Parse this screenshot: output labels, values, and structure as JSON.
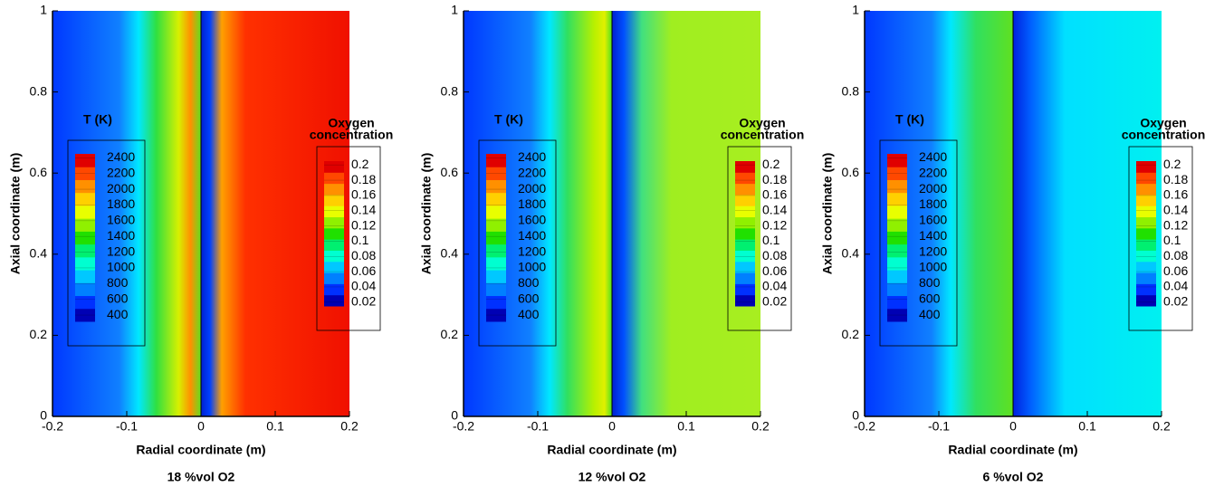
{
  "colormap": [
    "#0000b4",
    "#0030ff",
    "#0080ff",
    "#00c8ff",
    "#00ffd0",
    "#00f070",
    "#20e000",
    "#90f000",
    "#e8ff00",
    "#ffd000",
    "#ff9000",
    "#ff4800",
    "#e00000"
  ],
  "chart_data": [
    {
      "type": "contour",
      "caption": "18 %vol O2",
      "xlabel": "Radial coordinate (m)",
      "ylabel": "Axial coordinate (m)",
      "xlim": [
        -0.2,
        0.2
      ],
      "xticks": [
        -0.2,
        -0.1,
        0,
        0.1,
        0.2
      ],
      "ylim": [
        0,
        1
      ],
      "yticks": [
        0,
        0.2,
        0.4,
        0.6,
        0.8,
        1
      ],
      "colorbars": [
        {
          "title_lines": [
            "T (K)"
          ],
          "lim": [
            320,
            2450
          ],
          "ticks": [
            400,
            600,
            800,
            1000,
            1200,
            1400,
            1600,
            1800,
            2000,
            2200,
            2400
          ]
        },
        {
          "title_lines": [
            "Oxygen",
            "concentration"
          ],
          "lim": [
            0.015,
            0.205
          ],
          "ticks": [
            0.02,
            0.04,
            0.06,
            0.08,
            0.1,
            0.12,
            0.14,
            0.16,
            0.18,
            0.2
          ]
        }
      ]
    },
    {
      "type": "contour",
      "caption": "12 %vol O2",
      "xlabel": "Radial coordinate (m)",
      "ylabel": "Axial coordinate (m)",
      "xlim": [
        -0.2,
        0.2
      ],
      "xticks": [
        -0.2,
        -0.1,
        0,
        0.1,
        0.2
      ],
      "ylim": [
        0,
        1
      ],
      "yticks": [
        0,
        0.2,
        0.4,
        0.6,
        0.8,
        1
      ],
      "colorbars": [
        {
          "title_lines": [
            "T (K)"
          ],
          "lim": [
            320,
            2450
          ],
          "ticks": [
            400,
            600,
            800,
            1000,
            1200,
            1400,
            1600,
            1800,
            2000,
            2200,
            2400
          ]
        },
        {
          "title_lines": [
            "Oxygen",
            "concentration"
          ],
          "lim": [
            0.015,
            0.205
          ],
          "ticks": [
            0.02,
            0.04,
            0.06,
            0.08,
            0.1,
            0.12,
            0.14,
            0.16,
            0.18,
            0.2
          ]
        }
      ]
    },
    {
      "type": "contour",
      "caption": "6 %vol O2",
      "xlabel": "Radial coordinate (m)",
      "ylabel": "Axial coordinate (m)",
      "xlim": [
        -0.2,
        0.2
      ],
      "xticks": [
        -0.2,
        -0.1,
        0,
        0.1,
        0.2
      ],
      "ylim": [
        0,
        1
      ],
      "yticks": [
        0,
        0.2,
        0.4,
        0.6,
        0.8,
        1
      ],
      "colorbars": [
        {
          "title_lines": [
            "T (K)"
          ],
          "lim": [
            320,
            2450
          ],
          "ticks": [
            400,
            600,
            800,
            1000,
            1200,
            1400,
            1600,
            1800,
            2000,
            2200,
            2400
          ]
        },
        {
          "title_lines": [
            "Oxygen",
            "concentration"
          ],
          "lim": [
            0.015,
            0.205
          ],
          "ticks": [
            0.02,
            0.04,
            0.06,
            0.08,
            0.1,
            0.12,
            0.14,
            0.16,
            0.18,
            0.2
          ]
        }
      ]
    }
  ]
}
